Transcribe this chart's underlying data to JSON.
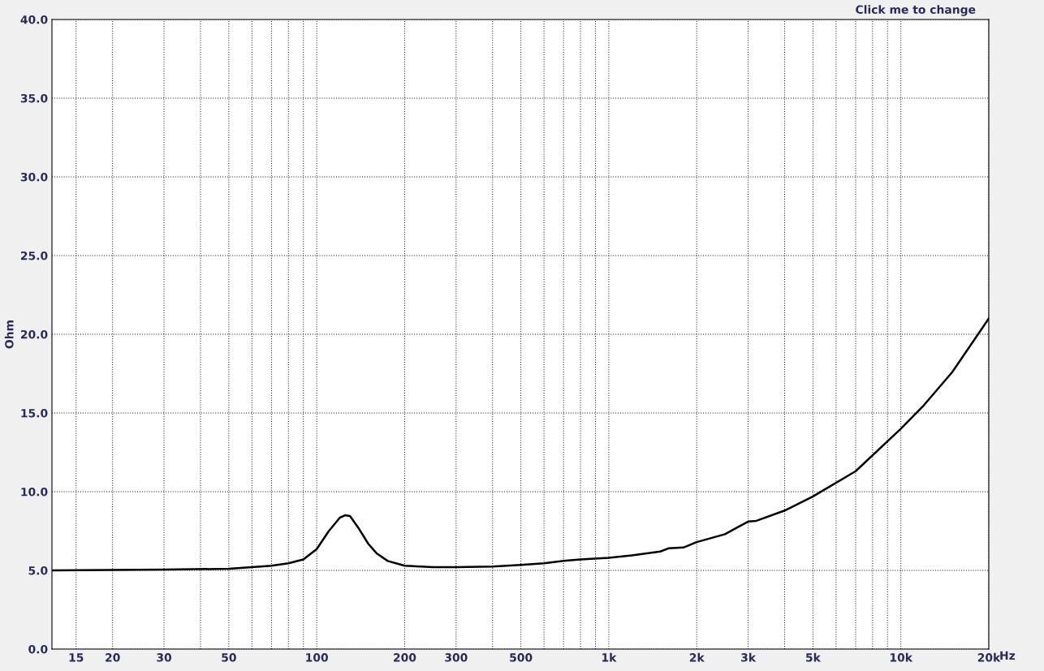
{
  "chart_data": {
    "type": "line",
    "ylabel": "Ohm",
    "log": "x",
    "annotations": [
      "Click me to change"
    ],
    "xlim": [
      12.4,
      20000
    ],
    "ylim": [
      0,
      40
    ],
    "xticks": [
      15,
      20,
      30,
      {
        "value": 40,
        "label": null
      },
      50,
      {
        "value": 60,
        "label": null
      },
      {
        "value": 70,
        "label": null
      },
      {
        "value": 80,
        "label": null
      },
      {
        "value": 90,
        "label": null
      },
      100,
      200,
      300,
      {
        "value": 400,
        "label": null
      },
      500,
      {
        "value": 600,
        "label": null
      },
      {
        "value": 700,
        "label": null
      },
      {
        "value": 800,
        "label": null
      },
      {
        "value": 900,
        "label": null
      },
      {
        "value": 1000,
        "label": "1k"
      },
      {
        "value": 2000,
        "label": "2k"
      },
      {
        "value": 3000,
        "label": "3k"
      },
      {
        "value": 4000,
        "label": null
      },
      {
        "value": 5000,
        "label": "5k"
      },
      {
        "value": 6000,
        "label": null
      },
      {
        "value": 7000,
        "label": null
      },
      {
        "value": 8000,
        "label": null
      },
      {
        "value": 9000,
        "label": null
      },
      {
        "value": 10000,
        "label": "10k"
      },
      {
        "value": 20000,
        "label": "20k"
      }
    ],
    "xlabel": "Hz",
    "yticks": [
      {
        "value": 0,
        "label": "0.0"
      },
      {
        "value": 5,
        "label": "5.0"
      },
      {
        "value": 10,
        "label": "10.0"
      },
      {
        "value": 15,
        "label": "15.0"
      },
      {
        "value": 20,
        "label": "20.0"
      },
      {
        "value": 25,
        "label": "25.0"
      },
      {
        "value": 30,
        "label": "30.0"
      },
      {
        "value": 35,
        "label": "35.0"
      },
      {
        "value": 40,
        "label": "40.0"
      }
    ],
    "grid": true,
    "line_style": "solid",
    "series": [
      {
        "color": "#000000",
        "x": [
          12.4,
          30,
          50,
          60,
          70,
          80,
          90,
          100,
          110,
          120,
          125,
          130,
          140,
          150,
          160,
          175,
          200,
          250,
          300,
          400,
          500,
          600,
          700,
          800,
          1000,
          1200,
          1500,
          1600,
          1800,
          2000,
          2500,
          2800,
          3000,
          3200,
          4000,
          5000,
          7000,
          10000,
          12000,
          15000,
          20000
        ],
        "values": [
          5.0,
          5.05,
          5.1,
          5.2,
          5.3,
          5.45,
          5.7,
          6.35,
          7.5,
          8.35,
          8.5,
          8.45,
          7.6,
          6.7,
          6.1,
          5.6,
          5.3,
          5.2,
          5.2,
          5.25,
          5.35,
          5.45,
          5.6,
          5.7,
          5.8,
          5.95,
          6.2,
          6.4,
          6.45,
          6.8,
          7.3,
          7.8,
          8.1,
          8.15,
          8.8,
          9.7,
          11.3,
          14.0,
          15.5,
          17.6,
          21.0
        ]
      }
    ]
  }
}
